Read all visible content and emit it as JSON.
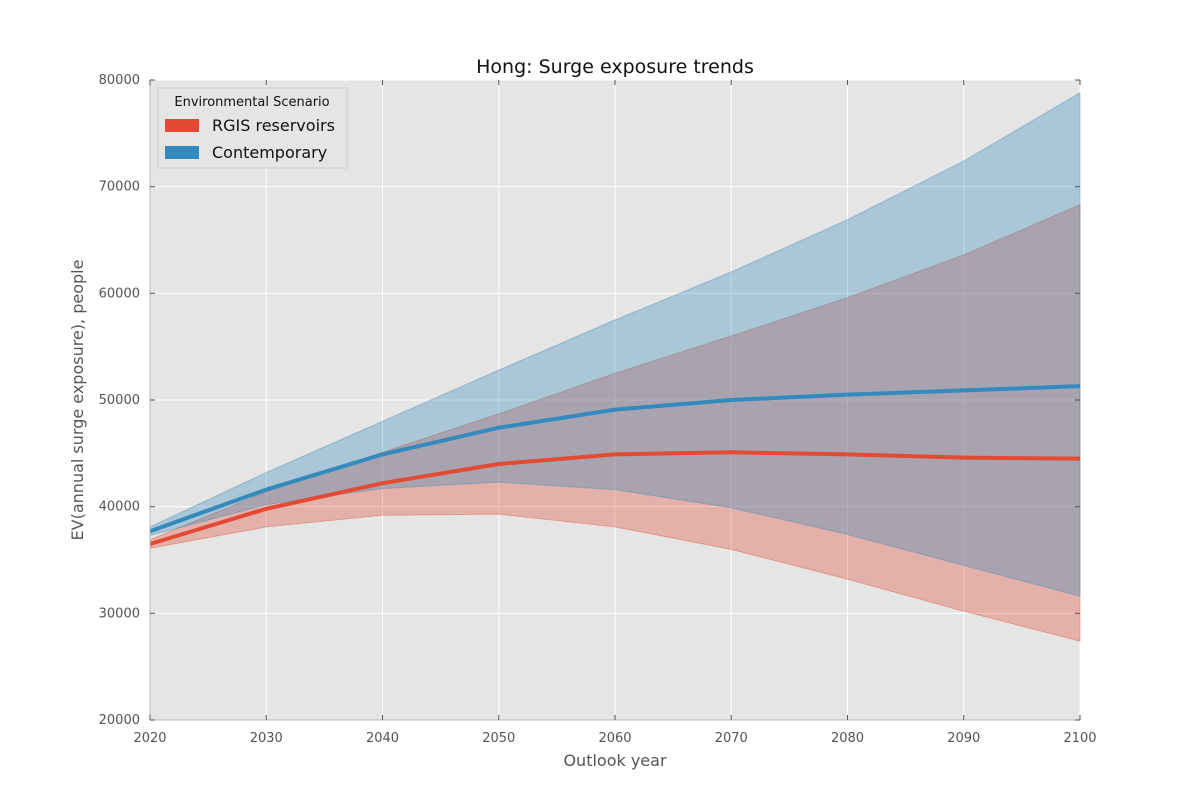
{
  "chart_data": {
    "type": "line",
    "title": "Hong: Surge exposure trends",
    "xlabel": "Outlook year",
    "ylabel": "EV(annual surge exposure), people",
    "xlim": [
      2020,
      2100
    ],
    "ylim": [
      20000,
      80000
    ],
    "x_ticks": [
      2020,
      2030,
      2040,
      2050,
      2060,
      2070,
      2080,
      2090,
      2100
    ],
    "y_ticks": [
      20000,
      30000,
      40000,
      50000,
      60000,
      70000,
      80000
    ],
    "grid": true,
    "legend": {
      "title": "Environmental Scenario",
      "placement": "top-left"
    },
    "x": [
      2020,
      2030,
      2040,
      2050,
      2060,
      2070,
      2080,
      2090,
      2100
    ],
    "series": [
      {
        "name": "RGIS reservoirs",
        "color": "#E24A33",
        "values": [
          36500,
          39800,
          42200,
          44000,
          44900,
          45100,
          44900,
          44600,
          44500
        ],
        "band_lower": [
          36100,
          38100,
          39200,
          39300,
          38100,
          36000,
          33200,
          30200,
          27400
        ],
        "band_upper": [
          36900,
          41400,
          45100,
          48700,
          52500,
          56000,
          59600,
          63600,
          68300
        ]
      },
      {
        "name": "Contemporary",
        "color": "#348ABD",
        "values": [
          37700,
          41600,
          44900,
          47400,
          49100,
          50000,
          50500,
          50900,
          51300
        ],
        "band_lower": [
          37300,
          40200,
          41700,
          42300,
          41600,
          39900,
          37400,
          34500,
          31600
        ],
        "band_upper": [
          38100,
          43200,
          48000,
          52800,
          57500,
          62000,
          66900,
          72400,
          78800
        ]
      }
    ]
  }
}
